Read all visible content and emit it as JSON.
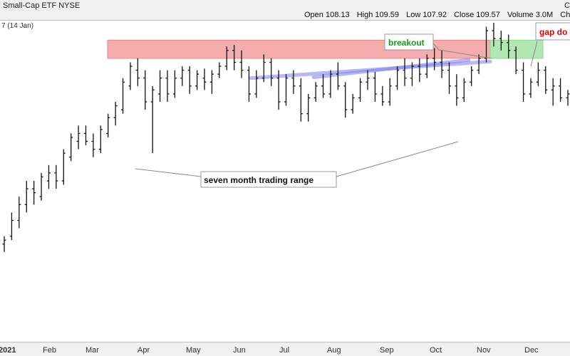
{
  "header": {
    "instrument": "Small-Cap ETF NYSE",
    "open_label": "Open",
    "open": "108.13",
    "high_label": "High",
    "high": "109.59",
    "low_label": "Low",
    "low": "107.92",
    "close_label": "Close",
    "close": "109.57",
    "volume_label": "Volume",
    "volume": "3.0M",
    "chg_label": "Chg",
    "corner": "C"
  },
  "moving_average_label": "7 (14 Jan)",
  "colors": {
    "bars": "#111111",
    "range_box": "#f08080",
    "breakout_box": "#88d888",
    "trendline": "#7c7cf0",
    "breakout_text": "#1a9a1a",
    "gap_text": "#dd0000",
    "header_bg": "#eef0f2"
  },
  "chart_data": {
    "type": "ohlc",
    "x_tick_labels": [
      "2021",
      "Feb",
      "Mar",
      "Apr",
      "May",
      "Jun",
      "Jul",
      "Aug",
      "Sep",
      "Oct",
      "Nov",
      "Dec"
    ],
    "ylim": [
      73,
      113
    ],
    "grid": false,
    "last_bar": {
      "open": 108.13,
      "high": 109.59,
      "low": 107.92,
      "close": 109.57
    },
    "series": [
      {
        "values": [
          [
            85,
            86,
            84,
            85.5
          ],
          [
            86,
            89,
            85.5,
            88
          ],
          [
            88,
            91,
            87,
            90
          ],
          [
            90,
            93,
            89,
            92
          ],
          [
            92,
            93,
            90,
            91.5
          ],
          [
            91,
            94,
            90.5,
            93.5
          ],
          [
            93,
            95,
            92,
            94
          ],
          [
            94,
            95,
            92,
            93
          ],
          [
            93,
            97,
            92.5,
            96.5
          ],
          [
            96,
            99,
            95.5,
            98.5
          ],
          [
            98,
            100,
            97,
            99
          ],
          [
            99,
            100,
            97.5,
            98
          ],
          [
            98,
            99,
            96,
            97
          ],
          [
            97,
            100,
            96.5,
            99.5
          ],
          [
            99,
            101.5,
            98.5,
            101
          ],
          [
            101,
            103,
            100,
            102.5
          ],
          [
            102,
            106,
            101.5,
            105.5
          ],
          [
            105,
            108,
            104.5,
            107.5
          ],
          [
            107,
            108.5,
            105,
            106
          ],
          [
            106,
            107,
            102,
            103
          ],
          [
            103,
            105,
            96.5,
            104.5
          ],
          [
            104,
            107,
            103,
            106
          ],
          [
            106,
            107,
            103,
            104
          ],
          [
            104,
            107,
            103.5,
            106
          ],
          [
            106,
            107.5,
            105,
            107
          ],
          [
            107,
            107.5,
            104,
            105
          ],
          [
            105,
            107,
            104.5,
            106.5
          ],
          [
            106,
            107.2,
            104.5,
            105.5
          ],
          [
            105.5,
            107,
            104,
            106.5
          ],
          [
            106.5,
            108,
            106,
            107.5
          ],
          [
            107.5,
            110,
            107,
            109.5
          ],
          [
            109.5,
            110.2,
            107,
            108
          ],
          [
            108,
            109.5,
            106,
            107
          ],
          [
            107,
            107.5,
            103,
            104
          ],
          [
            104,
            107,
            103.5,
            106
          ],
          [
            106,
            109,
            105.5,
            108
          ],
          [
            108,
            108.5,
            105,
            106
          ],
          [
            106,
            107,
            102,
            103
          ],
          [
            103,
            106.5,
            102.5,
            106
          ],
          [
            106,
            107,
            104,
            105
          ],
          [
            105,
            106,
            100.5,
            101.5
          ],
          [
            101.5,
            104,
            100.5,
            103.5
          ],
          [
            103.5,
            105.5,
            103,
            105
          ],
          [
            105,
            106.5,
            103.5,
            104
          ],
          [
            104,
            107,
            103.5,
            106.5
          ],
          [
            106.5,
            108,
            104.5,
            105
          ],
          [
            105,
            105.5,
            101,
            102
          ],
          [
            102,
            104,
            101.5,
            103.5
          ],
          [
            103.5,
            106,
            103,
            105.5
          ],
          [
            105.5,
            107,
            104.5,
            106
          ],
          [
            106,
            106.8,
            103,
            104
          ],
          [
            104,
            105,
            102.5,
            103
          ],
          [
            103,
            106,
            102.5,
            105
          ],
          [
            105,
            107.5,
            104.5,
            107
          ],
          [
            107,
            108.5,
            105,
            106
          ],
          [
            106,
            108,
            105,
            107.5
          ],
          [
            107.5,
            108.5,
            105.5,
            106.5
          ],
          [
            106.5,
            109,
            106,
            108.5
          ],
          [
            108.5,
            109.8,
            107,
            108
          ],
          [
            108,
            109.5,
            106,
            107
          ],
          [
            107,
            108,
            104,
            105
          ],
          [
            105,
            106.5,
            102.5,
            103.5
          ],
          [
            103.5,
            106,
            103,
            105.5
          ],
          [
            105.5,
            107.5,
            105,
            107
          ],
          [
            107,
            109,
            106.5,
            108.5
          ],
          [
            108.5,
            112.5,
            108,
            112
          ],
          [
            112,
            113,
            110,
            111
          ],
          [
            111,
            112,
            109.5,
            110.5
          ],
          [
            110.5,
            111.5,
            108.5,
            109.5
          ],
          [
            109.5,
            110,
            106.5,
            107
          ],
          [
            107,
            108,
            103,
            104
          ],
          [
            104,
            106,
            103.5,
            105.5
          ],
          [
            105.5,
            108,
            105,
            107
          ],
          [
            107,
            107.5,
            104,
            104.5
          ],
          [
            104.5,
            106,
            102.5,
            105
          ],
          [
            105,
            106,
            103,
            103.5
          ],
          [
            103.5,
            104.5,
            102.5,
            104
          ]
        ]
      }
    ],
    "annotations": [
      {
        "type": "text",
        "text": "breakout",
        "color": "#1a9a1a"
      },
      {
        "type": "text",
        "text": "gap do",
        "color": "#dd0000"
      },
      {
        "type": "text",
        "text": "seven month trading range",
        "color": "#111111"
      },
      {
        "type": "zone",
        "name": "seven month trading range",
        "y": [
          108.5,
          110.8
        ],
        "color": "#f08080"
      },
      {
        "type": "zone",
        "name": "breakout",
        "y": [
          108.5,
          110.8
        ],
        "color": "#88d888"
      },
      {
        "type": "trendline",
        "name": "upper",
        "from": [
          106.0,
          110.7
        ],
        "to": [
          108.1,
          106.5
        ]
      },
      {
        "type": "trendline",
        "name": "lower",
        "from": [
          106.1,
          97.0
        ],
        "to": [
          108.3,
          101.0
        ]
      }
    ]
  }
}
